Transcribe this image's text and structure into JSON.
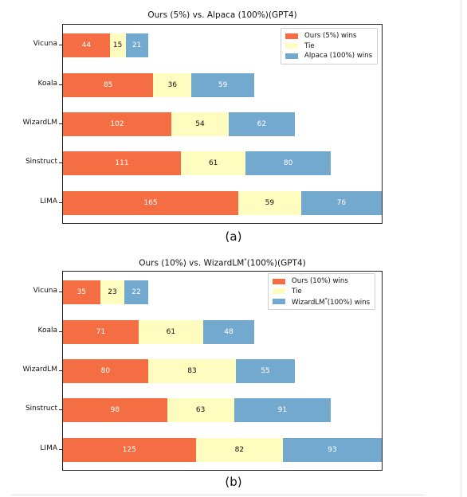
{
  "colors": {
    "ours": "#f46d43",
    "tie": "#fffcbf",
    "other": "#74a9cf",
    "ours_text": "#ffffff",
    "tie_text": "#111111",
    "other_text": "#ffffff"
  },
  "chart_data": [
    {
      "type": "bar",
      "orientation": "horizontal-stacked",
      "title": "Ours (5%) vs. Alpaca (100%)(GPT4)",
      "caption": "(a)",
      "categories": [
        "Vicuna",
        "Koala",
        "WizardLM",
        "Sinstruct",
        "LIMA"
      ],
      "series": [
        {
          "name": "Ours (5%) wins",
          "values": [
            44,
            85,
            102,
            111,
            165
          ]
        },
        {
          "name": "Tie",
          "values": [
            15,
            36,
            54,
            61,
            59
          ]
        },
        {
          "name": "Alpaca (100%) wins",
          "values": [
            21,
            59,
            62,
            80,
            76
          ]
        }
      ],
      "xlim": [
        0,
        300
      ],
      "legend": "top-right",
      "grid": false
    },
    {
      "type": "bar",
      "orientation": "horizontal-stacked",
      "title": "Ours (10%) vs. WizardLM*(100%)(GPT4)",
      "caption": "(b)",
      "categories": [
        "Vicuna",
        "Koala",
        "WizardLM",
        "Sinstruct",
        "LIMA"
      ],
      "series": [
        {
          "name": "Ours (10%) wins",
          "values": [
            35,
            71,
            80,
            98,
            125
          ]
        },
        {
          "name": "Tie",
          "values": [
            23,
            61,
            83,
            63,
            82
          ]
        },
        {
          "name": "WizardLM*(100%) wins",
          "values": [
            22,
            48,
            55,
            91,
            93
          ]
        }
      ],
      "xlim": [
        0,
        300
      ],
      "legend": "top-right",
      "grid": false
    }
  ]
}
